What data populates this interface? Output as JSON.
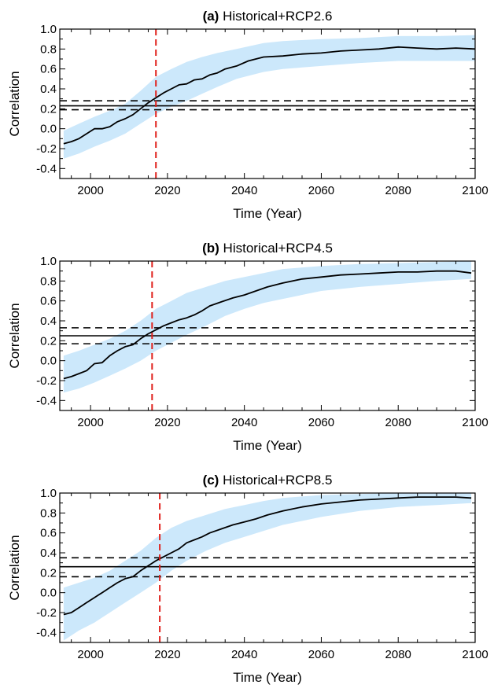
{
  "colors": {
    "band": "#cce8fb",
    "mean_line": "#000000",
    "threshold": "#000000",
    "vertical_marker": "#e0201b"
  },
  "chart_data": [
    {
      "type": "line",
      "panel_letter": "(a)",
      "title": "Historical+RCP2.6",
      "xlabel": "Time (Year)",
      "ylabel": "Correlation",
      "xlim": [
        1992,
        2100
      ],
      "ylim": [
        -0.5,
        1.0
      ],
      "xticks": [
        2000,
        2020,
        2040,
        2060,
        2080,
        2100
      ],
      "xtick_labels": [
        "2000",
        "2020",
        "2040",
        "2060",
        "2080",
        "2100"
      ],
      "yticks": [
        -0.4,
        -0.2,
        0.0,
        0.2,
        0.4,
        0.6,
        0.8,
        1.0
      ],
      "ytick_labels": [
        "-0.4",
        "-0.2",
        "0.0",
        "0.2",
        "0.4",
        "0.6",
        "0.8",
        "1.0"
      ],
      "threshold": 0.23,
      "threshold_bounds": [
        0.19,
        0.28
      ],
      "vertical_marker_x": 2017,
      "mean": {
        "x": [
          1993,
          1995,
          1997,
          1999,
          2001,
          2003,
          2005,
          2007,
          2009,
          2011,
          2013,
          2015,
          2017,
          2019,
          2021,
          2023,
          2025,
          2027,
          2029,
          2031,
          2033,
          2035,
          2038,
          2041,
          2045,
          2050,
          2055,
          2060,
          2065,
          2070,
          2075,
          2080,
          2085,
          2090,
          2095,
          2100
        ],
        "y": [
          -0.15,
          -0.13,
          -0.1,
          -0.05,
          0.0,
          0.0,
          0.02,
          0.07,
          0.1,
          0.14,
          0.2,
          0.26,
          0.31,
          0.36,
          0.4,
          0.44,
          0.45,
          0.49,
          0.5,
          0.54,
          0.56,
          0.6,
          0.63,
          0.68,
          0.72,
          0.73,
          0.75,
          0.76,
          0.78,
          0.79,
          0.8,
          0.82,
          0.81,
          0.8,
          0.81,
          0.8
        ]
      },
      "band": {
        "x": [
          1993,
          1997,
          2001,
          2005,
          2009,
          2013,
          2017,
          2021,
          2025,
          2029,
          2033,
          2038,
          2045,
          2050,
          2060,
          2070,
          2080,
          2090,
          2100
        ],
        "lower": [
          -0.3,
          -0.25,
          -0.18,
          -0.12,
          -0.05,
          0.05,
          0.15,
          0.22,
          0.28,
          0.35,
          0.42,
          0.5,
          0.57,
          0.6,
          0.63,
          0.66,
          0.68,
          0.68,
          0.68
        ],
        "upper": [
          -0.02,
          0.05,
          0.12,
          0.18,
          0.25,
          0.38,
          0.52,
          0.6,
          0.67,
          0.72,
          0.76,
          0.8,
          0.86,
          0.88,
          0.9,
          0.91,
          0.93,
          0.93,
          0.94
        ]
      }
    },
    {
      "type": "line",
      "panel_letter": "(b)",
      "title": "Historical+RCP4.5",
      "xlabel": "Time (Year)",
      "ylabel": "Correlation",
      "xlim": [
        1992,
        2100
      ],
      "ylim": [
        -0.5,
        1.0
      ],
      "xticks": [
        2000,
        2020,
        2040,
        2060,
        2080,
        2100
      ],
      "xtick_labels": [
        "2000",
        "2020",
        "2040",
        "2060",
        "2080",
        "2100"
      ],
      "yticks": [
        -0.4,
        -0.2,
        0.0,
        0.2,
        0.4,
        0.6,
        0.8,
        1.0
      ],
      "ytick_labels": [
        "-0.4",
        "-0.2",
        "0.0",
        "0.2",
        "0.4",
        "0.6",
        "0.8",
        "1.0"
      ],
      "threshold": 0.25,
      "threshold_bounds": [
        0.17,
        0.33
      ],
      "vertical_marker_x": 2016,
      "mean": {
        "x": [
          1993,
          1995,
          1997,
          1999,
          2001,
          2003,
          2005,
          2007,
          2009,
          2011,
          2013,
          2015,
          2017,
          2019,
          2021,
          2023,
          2025,
          2027,
          2029,
          2031,
          2034,
          2037,
          2040,
          2043,
          2046,
          2050,
          2055,
          2060,
          2065,
          2070,
          2075,
          2080,
          2085,
          2090,
          2095,
          2099
        ],
        "y": [
          -0.18,
          -0.16,
          -0.13,
          -0.1,
          -0.03,
          -0.02,
          0.05,
          0.1,
          0.14,
          0.16,
          0.22,
          0.27,
          0.31,
          0.35,
          0.38,
          0.41,
          0.43,
          0.46,
          0.5,
          0.55,
          0.59,
          0.63,
          0.66,
          0.7,
          0.74,
          0.78,
          0.82,
          0.84,
          0.86,
          0.87,
          0.88,
          0.89,
          0.89,
          0.9,
          0.9,
          0.88
        ]
      },
      "band": {
        "x": [
          1993,
          1997,
          2001,
          2005,
          2009,
          2013,
          2017,
          2021,
          2025,
          2030,
          2035,
          2040,
          2045,
          2050,
          2060,
          2070,
          2080,
          2090,
          2099
        ],
        "lower": [
          -0.32,
          -0.28,
          -0.22,
          -0.15,
          -0.08,
          0.0,
          0.1,
          0.18,
          0.26,
          0.35,
          0.45,
          0.52,
          0.58,
          0.62,
          0.7,
          0.74,
          0.77,
          0.8,
          0.82
        ],
        "upper": [
          0.05,
          0.1,
          0.16,
          0.22,
          0.3,
          0.4,
          0.52,
          0.6,
          0.68,
          0.74,
          0.8,
          0.84,
          0.88,
          0.92,
          0.95,
          0.97,
          0.98,
          0.99,
          1.0
        ]
      }
    },
    {
      "type": "line",
      "panel_letter": "(c)",
      "title": "Historical+RCP8.5",
      "xlabel": "Time (Year)",
      "ylabel": "Correlation",
      "xlim": [
        1992,
        2100
      ],
      "ylim": [
        -0.5,
        1.0
      ],
      "xticks": [
        2000,
        2020,
        2040,
        2060,
        2080,
        2100
      ],
      "xtick_labels": [
        "2000",
        "2020",
        "2040",
        "2060",
        "2080",
        "2100"
      ],
      "yticks": [
        -0.4,
        -0.2,
        0.0,
        0.2,
        0.4,
        0.6,
        0.8,
        1.0
      ],
      "ytick_labels": [
        "-0.4",
        "-0.2",
        "0.0",
        "0.2",
        "0.4",
        "0.6",
        "0.8",
        "1.0"
      ],
      "threshold": 0.26,
      "threshold_bounds": [
        0.16,
        0.35
      ],
      "vertical_marker_x": 2018,
      "mean": {
        "x": [
          1993,
          1995,
          1997,
          1999,
          2001,
          2003,
          2005,
          2007,
          2009,
          2011,
          2013,
          2015,
          2017,
          2019,
          2021,
          2023,
          2025,
          2027,
          2029,
          2031,
          2034,
          2037,
          2040,
          2043,
          2046,
          2050,
          2055,
          2060,
          2065,
          2070,
          2075,
          2080,
          2085,
          2090,
          2095,
          2099
        ],
        "y": [
          -0.22,
          -0.2,
          -0.15,
          -0.1,
          -0.05,
          0.0,
          0.05,
          0.1,
          0.14,
          0.16,
          0.22,
          0.27,
          0.32,
          0.36,
          0.4,
          0.44,
          0.5,
          0.53,
          0.56,
          0.6,
          0.64,
          0.68,
          0.71,
          0.74,
          0.78,
          0.82,
          0.86,
          0.89,
          0.91,
          0.93,
          0.94,
          0.95,
          0.96,
          0.96,
          0.96,
          0.95
        ]
      },
      "band": {
        "x": [
          1993,
          1997,
          2001,
          2005,
          2009,
          2013,
          2017,
          2021,
          2025,
          2030,
          2035,
          2040,
          2045,
          2050,
          2060,
          2070,
          2080,
          2090,
          2099
        ],
        "lower": [
          -0.48,
          -0.38,
          -0.3,
          -0.2,
          -0.1,
          0.0,
          0.1,
          0.22,
          0.32,
          0.42,
          0.5,
          0.56,
          0.62,
          0.68,
          0.76,
          0.82,
          0.86,
          0.88,
          0.9
        ],
        "upper": [
          0.05,
          0.1,
          0.15,
          0.22,
          0.32,
          0.42,
          0.55,
          0.65,
          0.72,
          0.78,
          0.84,
          0.88,
          0.92,
          0.95,
          0.98,
          0.99,
          1.0,
          1.0,
          1.0
        ]
      }
    }
  ]
}
